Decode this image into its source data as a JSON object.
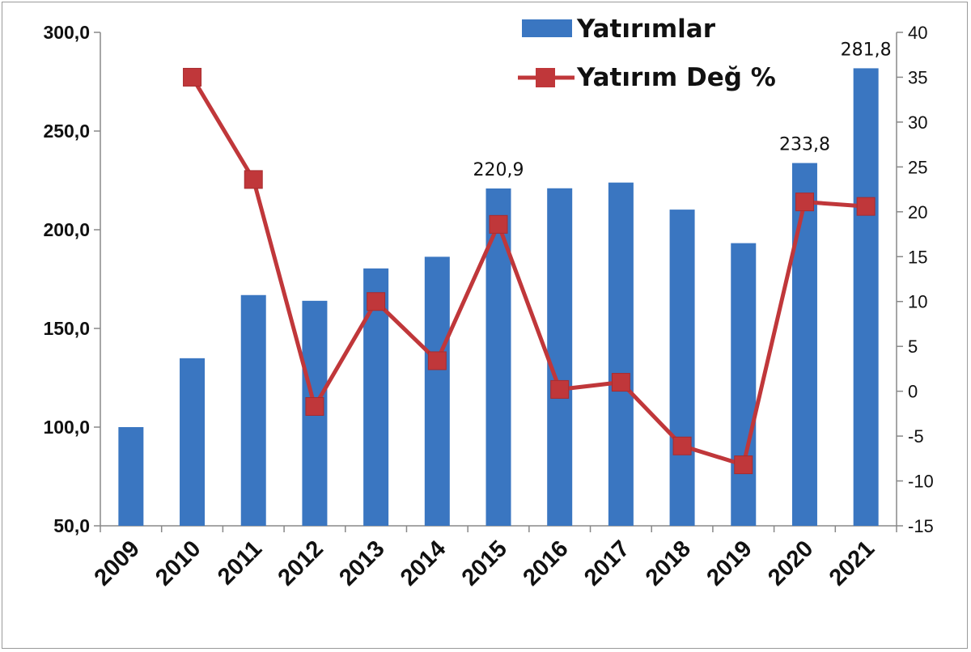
{
  "chart_data": {
    "type": "bar",
    "title": "",
    "xlabel": "",
    "ylabel": "",
    "categories": [
      "2009",
      "2010",
      "2011",
      "2012",
      "2013",
      "2014",
      "2015",
      "2016",
      "2017",
      "2018",
      "2019",
      "2020",
      "2021"
    ],
    "series": [
      {
        "name": "Yatırımlar",
        "type": "bar",
        "axis": "left",
        "color": "#3A76C1",
        "values": [
          100.0,
          134.9,
          166.9,
          164.0,
          180.4,
          186.3,
          220.9,
          221.0,
          223.9,
          210.2,
          193.2,
          233.8,
          281.8
        ]
      },
      {
        "name": "Yatırım Değ %",
        "type": "line",
        "axis": "right",
        "color": "#C0373A",
        "values": [
          null,
          35.0,
          23.6,
          -1.7,
          10.0,
          3.4,
          18.6,
          0.2,
          1.0,
          -6.1,
          -8.2,
          21.1,
          20.6
        ]
      }
    ],
    "data_labels": [
      {
        "category": "2015",
        "text": "220,9"
      },
      {
        "category": "2020",
        "text": "233,8"
      },
      {
        "category": "2021",
        "text": "281,8"
      }
    ],
    "ylim_left": [
      50,
      300
    ],
    "yticks_left": [
      "50,0",
      "100,0",
      "150,0",
      "200,0",
      "250,0",
      "300,0"
    ],
    "ylim_right": [
      -15,
      40
    ],
    "yticks_right": [
      "-15",
      "-10",
      "-5",
      "0",
      "5",
      "10",
      "15",
      "20",
      "25",
      "30",
      "35",
      "40"
    ],
    "legend_position": "top-right",
    "grid": false
  }
}
